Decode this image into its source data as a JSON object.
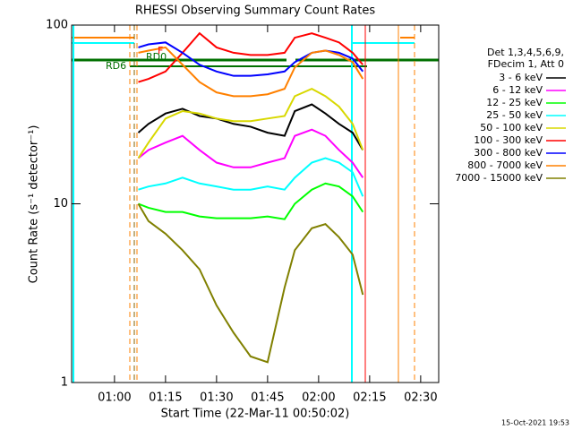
{
  "chart_data": {
    "type": "line",
    "title": "RHESSI Observing Summary Count Rates",
    "x_label": "Start Time (22-Mar-11 00:50:02)",
    "y_label": "Count Rate (s⁻¹ detector⁻¹)",
    "legend_title": [
      "Det 1,3,4,5,6,9,",
      "FDecim 1, Att 0"
    ],
    "timestamp": "15-Oct-2021 19:53",
    "annotations": [
      "RD0",
      "RD6",
      "F"
    ],
    "log_y": true,
    "xlim": [
      47.4,
      155.3
    ],
    "xticks": [
      {
        "value": 60,
        "label": "01:00"
      },
      {
        "value": 75,
        "label": "01:15"
      },
      {
        "value": 90,
        "label": "01:30"
      },
      {
        "value": 105,
        "label": "01:45"
      },
      {
        "value": 120,
        "label": "02:00"
      },
      {
        "value": 135,
        "label": "02:15"
      },
      {
        "value": 150,
        "label": "02:30"
      }
    ],
    "ylim": [
      1,
      100
    ],
    "yticks": [
      1,
      10,
      100
    ],
    "x": [
      67,
      70,
      75,
      80,
      85,
      90,
      95,
      100,
      105,
      110,
      113,
      118,
      122,
      126,
      130,
      133
    ],
    "series": [
      {
        "name": "3 - 6 keV",
        "color": "#000000",
        "values": [
          25,
          28,
          32,
          34,
          31,
          30,
          28,
          27,
          25,
          24,
          33,
          36,
          32,
          28,
          25,
          20
        ]
      },
      {
        "name": "6 - 12 keV",
        "color": "#ff00ff",
        "values": [
          18,
          20,
          22,
          24,
          20,
          17,
          16,
          16,
          17,
          18,
          24,
          26,
          24,
          20,
          17,
          14
        ]
      },
      {
        "name": "12 - 25 keV",
        "color": "#00ff00",
        "values": [
          10,
          9.5,
          9,
          9,
          8.5,
          8.3,
          8.3,
          8.3,
          8.5,
          8.2,
          10,
          12,
          13,
          12.5,
          11,
          9
        ]
      },
      {
        "name": "25 - 50 keV",
        "color": "#00ffff",
        "values": [
          12,
          12.5,
          13,
          14,
          13,
          12.5,
          12,
          12,
          12.5,
          12,
          14,
          17,
          18,
          17,
          15,
          11
        ]
      },
      {
        "name": "50 - 100 keV",
        "color": "#d8d800",
        "values": [
          18,
          22,
          30,
          33,
          32,
          30,
          29,
          29,
          30,
          31,
          40,
          44,
          40,
          35,
          28,
          20
        ]
      },
      {
        "name": "100 - 300 keV",
        "color": "#ff0000",
        "values": [
          48,
          50,
          55,
          70,
          90,
          75,
          70,
          68,
          68,
          70,
          85,
          90,
          85,
          80,
          70,
          60
        ]
      },
      {
        "name": "300 - 800 keV",
        "color": "#0000ff",
        "values": [
          75,
          78,
          80,
          70,
          60,
          55,
          52,
          52,
          53,
          55,
          62,
          70,
          72,
          70,
          65,
          55
        ]
      },
      {
        "name": "800 - 7000 keV",
        "color": "#ff8000",
        "values": [
          70,
          72,
          75,
          60,
          48,
          42,
          40,
          40,
          41,
          44,
          58,
          70,
          72,
          68,
          62,
          50
        ]
      },
      {
        "name": "7000 - 15000 keV",
        "color": "#808000",
        "values": [
          10,
          8,
          6.8,
          5.5,
          4.3,
          2.7,
          1.9,
          1.4,
          1.3,
          3.4,
          5.5,
          7.3,
          7.7,
          6.5,
          5.2,
          3.1
        ]
      }
    ]
  }
}
